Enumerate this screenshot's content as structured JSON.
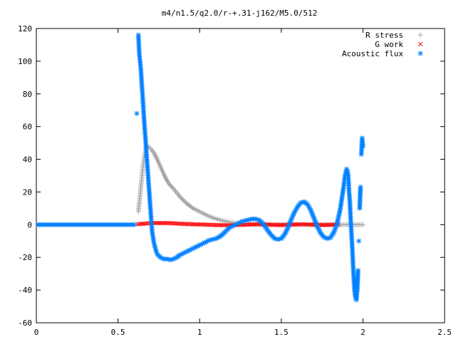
{
  "chart_data": {
    "type": "scatter",
    "title": "m4/n1.5/q2.0/r-+.31-j162/M5.0/512",
    "xlabel": "",
    "ylabel": "",
    "xlim": [
      0,
      2.5
    ],
    "ylim": [
      -60,
      120
    ],
    "x_ticks": [
      "0",
      "0.5",
      "1",
      "1.5",
      "2",
      "2.5"
    ],
    "y_ticks": [
      "120",
      "100",
      "80",
      "60",
      "40",
      "20",
      "0",
      "-20",
      "-40",
      "-60"
    ],
    "grid": false,
    "legend": "top-right",
    "series": [
      {
        "name": "R stress",
        "marker": "plus",
        "color": "#a0a0a0",
        "points": [
          [
            0.625,
            8
          ],
          [
            0.63,
            13
          ],
          [
            0.635,
            18
          ],
          [
            0.64,
            23
          ],
          [
            0.645,
            28
          ],
          [
            0.65,
            33
          ],
          [
            0.655,
            37
          ],
          [
            0.66,
            41
          ],
          [
            0.665,
            44
          ],
          [
            0.67,
            46
          ],
          [
            0.675,
            47.5
          ],
          [
            0.68,
            48
          ],
          [
            0.69,
            47.5
          ],
          [
            0.7,
            46.5
          ],
          [
            0.72,
            44
          ],
          [
            0.74,
            40
          ],
          [
            0.76,
            35.5
          ],
          [
            0.78,
            31
          ],
          [
            0.8,
            27
          ],
          [
            0.82,
            24
          ],
          [
            0.84,
            22
          ],
          [
            0.86,
            19.5
          ],
          [
            0.88,
            17
          ],
          [
            0.9,
            15
          ],
          [
            0.92,
            13
          ],
          [
            0.94,
            11.5
          ],
          [
            0.96,
            10
          ],
          [
            0.98,
            9
          ],
          [
            1.0,
            8
          ],
          [
            1.02,
            7
          ],
          [
            1.04,
            6
          ],
          [
            1.06,
            5
          ],
          [
            1.08,
            4.3
          ],
          [
            1.1,
            3.6
          ],
          [
            1.12,
            3
          ],
          [
            1.14,
            2.5
          ],
          [
            1.16,
            2
          ],
          [
            1.18,
            1.6
          ],
          [
            1.2,
            1.3
          ],
          [
            1.22,
            1
          ],
          [
            1.24,
            0.8
          ],
          [
            1.26,
            0.6
          ],
          [
            1.28,
            0.5
          ],
          [
            1.3,
            0.4
          ],
          [
            1.32,
            0.3
          ],
          [
            1.34,
            0.2
          ],
          [
            1.36,
            0.15
          ],
          [
            1.38,
            0.1
          ],
          [
            1.4,
            0.1
          ],
          [
            1.45,
            0.05
          ],
          [
            1.5,
            0
          ],
          [
            1.6,
            0
          ],
          [
            1.7,
            0
          ],
          [
            1.8,
            0
          ],
          [
            1.9,
            0
          ],
          [
            2.0,
            0
          ]
        ]
      },
      {
        "name": "G work",
        "marker": "cross",
        "color": "#ff0000",
        "points": [
          [
            0.62,
            0.3
          ],
          [
            0.65,
            0.5
          ],
          [
            0.68,
            0.8
          ],
          [
            0.71,
            1
          ],
          [
            0.74,
            1
          ],
          [
            0.77,
            1
          ],
          [
            0.8,
            1
          ],
          [
            0.83,
            0.9
          ],
          [
            0.86,
            0.7
          ],
          [
            0.89,
            0.5
          ],
          [
            0.92,
            0.4
          ],
          [
            0.95,
            0.3
          ],
          [
            0.98,
            0.2
          ],
          [
            1.01,
            0.1
          ],
          [
            1.04,
            0
          ],
          [
            1.07,
            -0.1
          ],
          [
            1.1,
            -0.2
          ],
          [
            1.13,
            -0.3
          ],
          [
            1.16,
            -0.3
          ],
          [
            1.19,
            -0.3
          ],
          [
            1.22,
            -0.2
          ],
          [
            1.25,
            -0.1
          ],
          [
            1.28,
            0
          ],
          [
            1.31,
            0.1
          ],
          [
            1.34,
            0.2
          ],
          [
            1.37,
            0.2
          ],
          [
            1.4,
            0.1
          ],
          [
            1.43,
            0
          ],
          [
            1.46,
            -0.1
          ],
          [
            1.49,
            -0.2
          ],
          [
            1.52,
            -0.1
          ],
          [
            1.55,
            0
          ],
          [
            1.58,
            0.1
          ],
          [
            1.61,
            0.2
          ],
          [
            1.64,
            0.2
          ],
          [
            1.67,
            0.1
          ],
          [
            1.7,
            0
          ],
          [
            1.73,
            -0.1
          ],
          [
            1.76,
            -0.2
          ],
          [
            1.79,
            -0.1
          ],
          [
            1.82,
            0
          ],
          [
            1.85,
            0.1
          ]
        ]
      },
      {
        "name": "Acoustic flux",
        "marker": "star",
        "color": "#0080ff",
        "points": [
          [
            0.0,
            0
          ],
          [
            0.05,
            0
          ],
          [
            0.1,
            0
          ],
          [
            0.15,
            0
          ],
          [
            0.2,
            0
          ],
          [
            0.25,
            0
          ],
          [
            0.3,
            0
          ],
          [
            0.35,
            0
          ],
          [
            0.4,
            0
          ],
          [
            0.45,
            0
          ],
          [
            0.5,
            0
          ],
          [
            0.55,
            0
          ],
          [
            0.6,
            0
          ],
          [
            0.615,
            68
          ],
          [
            0.625,
            116
          ],
          [
            0.63,
            105
          ],
          [
            0.635,
            100
          ],
          [
            0.64,
            95
          ],
          [
            0.645,
            87
          ],
          [
            0.65,
            80
          ],
          [
            0.655,
            72
          ],
          [
            0.66,
            64
          ],
          [
            0.665,
            57
          ],
          [
            0.67,
            50
          ],
          [
            0.675,
            43
          ],
          [
            0.68,
            36
          ],
          [
            0.685,
            29
          ],
          [
            0.69,
            22
          ],
          [
            0.695,
            15
          ],
          [
            0.7,
            8
          ],
          [
            0.705,
            1
          ],
          [
            0.71,
            -5
          ],
          [
            0.72,
            -11
          ],
          [
            0.73,
            -15
          ],
          [
            0.74,
            -18
          ],
          [
            0.76,
            -20
          ],
          [
            0.78,
            -21
          ],
          [
            0.8,
            -21
          ],
          [
            0.82,
            -21.5
          ],
          [
            0.84,
            -21
          ],
          [
            0.86,
            -20
          ],
          [
            0.88,
            -18.5
          ],
          [
            0.9,
            -17.5
          ],
          [
            0.92,
            -16.5
          ],
          [
            0.94,
            -15.5
          ],
          [
            0.96,
            -14.5
          ],
          [
            0.98,
            -13.5
          ],
          [
            1.0,
            -12.5
          ],
          [
            1.02,
            -11.5
          ],
          [
            1.04,
            -10.5
          ],
          [
            1.06,
            -9.5
          ],
          [
            1.08,
            -9
          ],
          [
            1.1,
            -8.5
          ],
          [
            1.12,
            -7.5
          ],
          [
            1.14,
            -6
          ],
          [
            1.16,
            -4
          ],
          [
            1.18,
            -2
          ],
          [
            1.2,
            -1
          ],
          [
            1.22,
            0
          ],
          [
            1.24,
            1
          ],
          [
            1.26,
            2
          ],
          [
            1.28,
            2.5
          ],
          [
            1.3,
            3
          ],
          [
            1.32,
            3.5
          ],
          [
            1.34,
            3.5
          ],
          [
            1.36,
            3
          ],
          [
            1.38,
            1.5
          ],
          [
            1.4,
            -1
          ],
          [
            1.42,
            -4
          ],
          [
            1.44,
            -6.5
          ],
          [
            1.46,
            -8.5
          ],
          [
            1.48,
            -9
          ],
          [
            1.5,
            -8.5
          ],
          [
            1.52,
            -6
          ],
          [
            1.54,
            -2
          ],
          [
            1.56,
            3
          ],
          [
            1.58,
            7.5
          ],
          [
            1.6,
            11
          ],
          [
            1.62,
            13.5
          ],
          [
            1.64,
            14
          ],
          [
            1.66,
            12.5
          ],
          [
            1.68,
            9
          ],
          [
            1.7,
            4
          ],
          [
            1.72,
            -1
          ],
          [
            1.74,
            -5
          ],
          [
            1.76,
            -7.5
          ],
          [
            1.78,
            -8.5
          ],
          [
            1.8,
            -8
          ],
          [
            1.82,
            -5
          ],
          [
            1.84,
            0
          ],
          [
            1.86,
            9
          ],
          [
            1.88,
            22
          ],
          [
            1.89,
            30
          ],
          [
            1.9,
            34
          ],
          [
            1.905,
            33
          ],
          [
            1.91,
            30
          ],
          [
            1.915,
            20
          ],
          [
            1.92,
            14
          ],
          [
            1.925,
            3
          ],
          [
            1.93,
            -6
          ],
          [
            1.935,
            -15
          ],
          [
            1.94,
            -26
          ],
          [
            1.945,
            -35
          ],
          [
            1.95,
            -42
          ],
          [
            1.955,
            -45
          ],
          [
            1.96,
            -46
          ],
          [
            1.965,
            -40
          ],
          [
            1.97,
            -28
          ],
          [
            1.975,
            -10
          ],
          [
            1.98,
            10
          ],
          [
            1.985,
            23
          ],
          [
            1.99,
            43
          ],
          [
            1.995,
            53
          ],
          [
            2.0,
            48
          ]
        ]
      }
    ]
  }
}
